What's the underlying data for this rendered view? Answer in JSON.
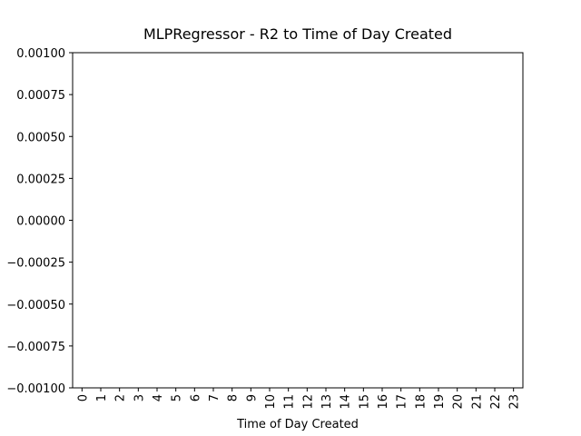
{
  "chart_data": {
    "type": "bar",
    "title": "MLPRegressor - R2 to Time of Day Created",
    "xlabel": "Time of Day Created",
    "categories": [
      "0",
      "1",
      "2",
      "3",
      "4",
      "5",
      "6",
      "7",
      "8",
      "9",
      "10",
      "11",
      "12",
      "13",
      "14",
      "15",
      "16",
      "17",
      "18",
      "19",
      "20",
      "21",
      "22",
      "23"
    ],
    "values": [
      0,
      0,
      0,
      0,
      0,
      0,
      0,
      0,
      0,
      0,
      0,
      0,
      0,
      0,
      0,
      0,
      0,
      0,
      0,
      0,
      0,
      0,
      0,
      0
    ],
    "color": "#1f77b4",
    "ylim": [
      -0.001,
      0.001
    ],
    "yticks": [
      {
        "value": 0.001,
        "label": "0.00100"
      },
      {
        "value": 0.00075,
        "label": "0.00075"
      },
      {
        "value": 0.0005,
        "label": "0.00050"
      },
      {
        "value": 0.00025,
        "label": "0.00025"
      },
      {
        "value": 0,
        "label": "0.00000"
      },
      {
        "value": -0.00025,
        "label": "−0.00025"
      },
      {
        "value": -0.0005,
        "label": "−0.00050"
      },
      {
        "value": -0.00075,
        "label": "−0.00075"
      },
      {
        "value": -0.001,
        "label": "−0.00100"
      }
    ],
    "grid": false
  }
}
